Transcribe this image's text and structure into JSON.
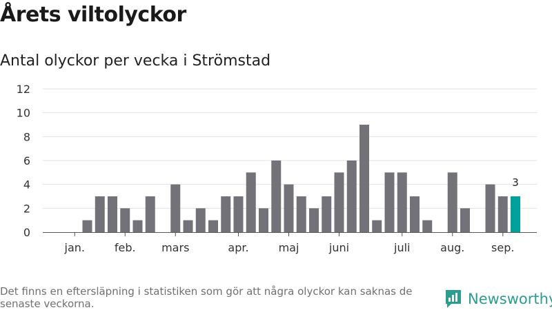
{
  "header": {
    "title": "Årets viltolyckor",
    "subtitle": "Antal olyckor per vecka i Strömstad"
  },
  "footer": {
    "note": "Det finns en eftersläpning i statistiken som gör att några olyckor kan saknas de senaste veckorna.",
    "brand": "Newsworthy"
  },
  "colors": {
    "bar": "#737278",
    "highlight": "#00a19a",
    "grid": "#e2e2e2",
    "axis": "#555555",
    "brand": "#2a9d8f"
  },
  "chart_data": {
    "type": "bar",
    "title": "Antal olyckor per vecka i Strömstad",
    "xlabel": "",
    "ylabel": "",
    "ylim": [
      0,
      12
    ],
    "yticks": [
      0,
      2,
      4,
      6,
      8,
      10,
      12
    ],
    "grid": true,
    "weeks": [
      1,
      2,
      3,
      4,
      5,
      6,
      7,
      8,
      9,
      10,
      11,
      12,
      13,
      14,
      15,
      16,
      17,
      18,
      19,
      20,
      21,
      22,
      23,
      24,
      25,
      26,
      27,
      28,
      29,
      30,
      31,
      32,
      33,
      34,
      35,
      36,
      37,
      38
    ],
    "values": [
      0,
      0,
      1,
      3,
      3,
      2,
      1,
      3,
      0,
      4,
      1,
      2,
      1,
      3,
      3,
      5,
      2,
      6,
      4,
      3,
      2,
      3,
      5,
      6,
      9,
      1,
      5,
      5,
      3,
      1,
      0,
      5,
      2,
      0,
      4,
      3,
      3,
      0
    ],
    "highlight_week": 37,
    "highlight_label": "3",
    "month_labels": [
      {
        "label": "jan.",
        "week": 2
      },
      {
        "label": "feb.",
        "week": 6
      },
      {
        "label": "mars",
        "week": 10
      },
      {
        "label": "apr.",
        "week": 15
      },
      {
        "label": "maj",
        "week": 19
      },
      {
        "label": "juni",
        "week": 23
      },
      {
        "label": "juli",
        "week": 28
      },
      {
        "label": "aug.",
        "week": 32
      },
      {
        "label": "sep.",
        "week": 36
      }
    ]
  }
}
